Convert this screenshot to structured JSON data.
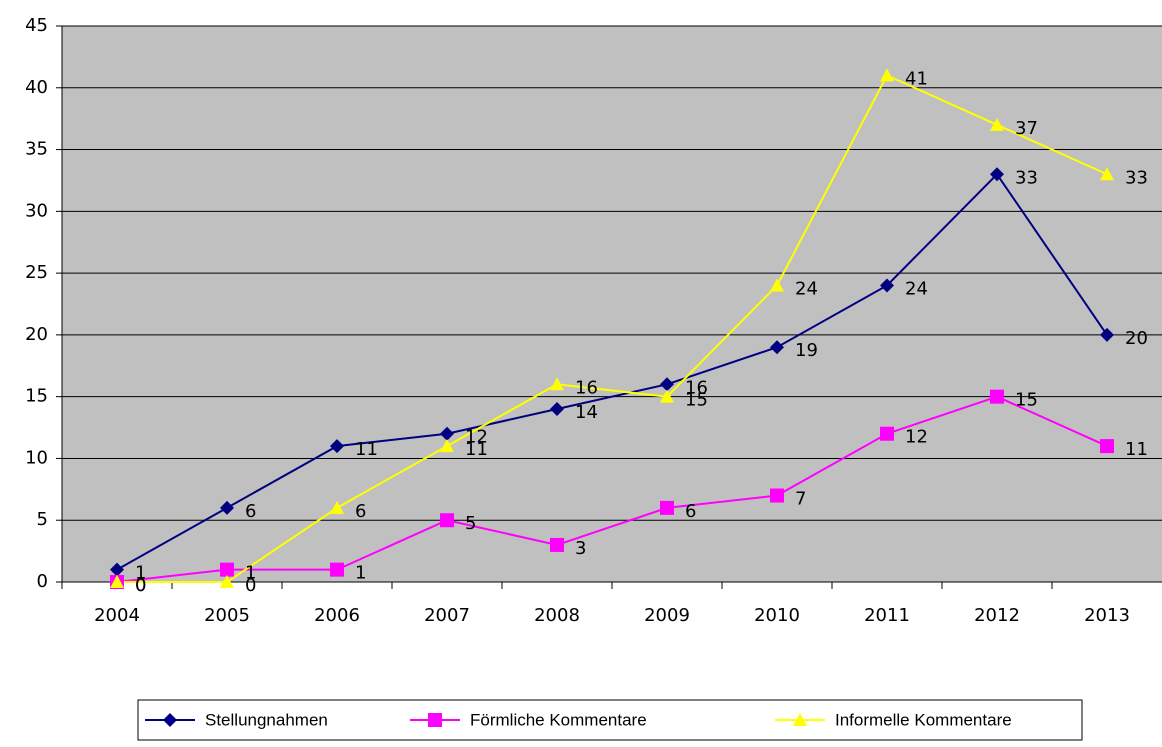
{
  "chart_data": {
    "type": "line",
    "categories": [
      "2004",
      "2005",
      "2006",
      "2007",
      "2008",
      "2009",
      "2010",
      "2011",
      "2012",
      "2013"
    ],
    "series": [
      {
        "name": "Stellungnahmen",
        "color": "#000080",
        "marker": "diamond",
        "values": [
          1,
          6,
          11,
          12,
          14,
          16,
          19,
          24,
          33,
          20
        ]
      },
      {
        "name": "Förmliche Kommentare",
        "color": "#ff00ff",
        "marker": "square",
        "values": [
          0,
          1,
          1,
          5,
          3,
          6,
          7,
          12,
          15,
          11
        ]
      },
      {
        "name": "Informelle Kommentare",
        "color": "#ffff00",
        "marker": "triangle",
        "values": [
          0,
          0,
          6,
          11,
          16,
          15,
          24,
          41,
          37,
          33
        ]
      }
    ],
    "ylim": [
      0,
      45
    ],
    "yticks": [
      0,
      5,
      10,
      15,
      20,
      25,
      30,
      35,
      40,
      45
    ],
    "grid": true,
    "legend": "bottom",
    "plot_background": "#c0c0c0"
  }
}
